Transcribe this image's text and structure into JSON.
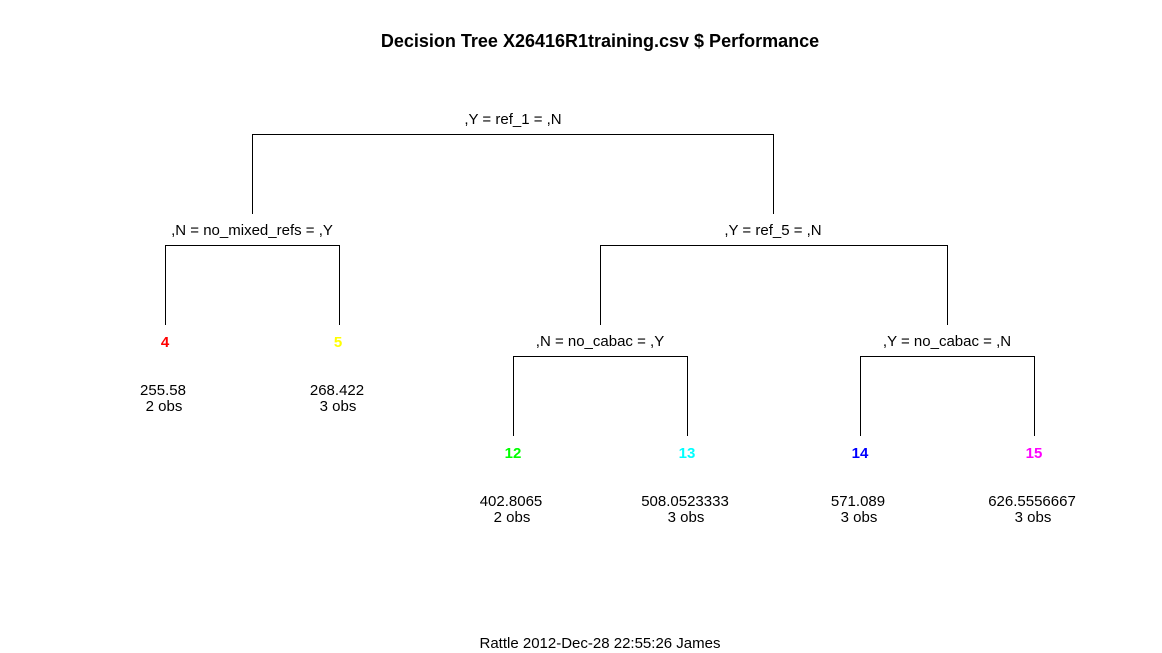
{
  "title": "Decision Tree X26416R1training.csv $ Performance",
  "footer": "Rattle 2012-Dec-28 22:55:26 James",
  "splits": {
    "root": ",Y = ref_1 = ,N",
    "n2": ",N = no_mixed_refs = ,Y",
    "n3": ",Y = ref_5 = ,N",
    "n6": ",N = no_cabac = ,Y",
    "n7": ",Y = no_cabac = ,N"
  },
  "leaves": {
    "n4": {
      "id": "4",
      "value": "255.58",
      "obs": "2 obs",
      "color": "#FF0000"
    },
    "n5": {
      "id": "5",
      "value": "268.422",
      "obs": "3 obs",
      "color": "#FFFF00"
    },
    "n12": {
      "id": "12",
      "value": "402.8065",
      "obs": "2 obs",
      "color": "#00FF00"
    },
    "n13": {
      "id": "13",
      "value": "508.0523333",
      "obs": "3 obs",
      "color": "#00FFFF"
    },
    "n14": {
      "id": "14",
      "value": "571.089",
      "obs": "3 obs",
      "color": "#0000FF"
    },
    "n15": {
      "id": "15",
      "value": "626.5556667",
      "obs": "3 obs",
      "color": "#FF00FF"
    }
  }
}
